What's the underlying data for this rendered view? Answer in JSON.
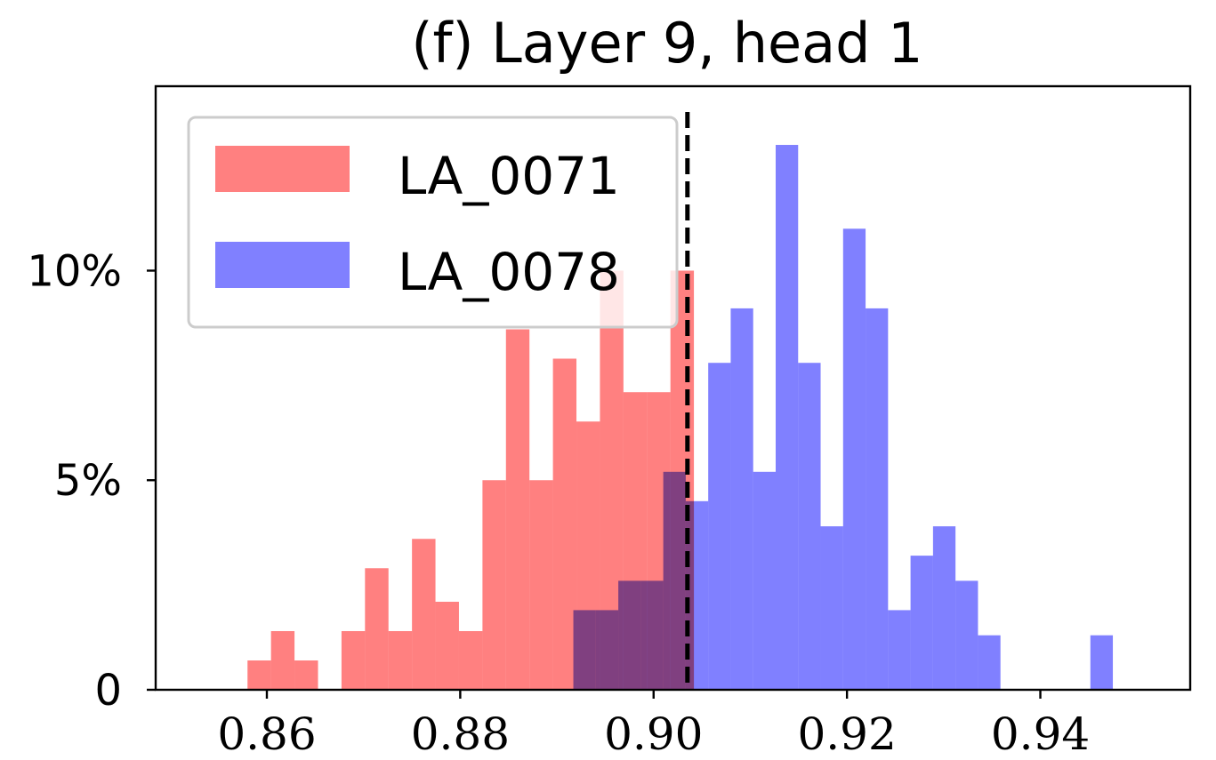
{
  "chart_data": {
    "type": "bar",
    "title": "(f) Layer 9, head 1",
    "xlabel": "",
    "ylabel": "",
    "xlim": [
      0.8485,
      0.9555
    ],
    "ylim": [
      0,
      14.4
    ],
    "xticks": [
      {
        "value": 0.86,
        "label": "0.86"
      },
      {
        "value": 0.88,
        "label": "0.88"
      },
      {
        "value": 0.9,
        "label": "0.90"
      },
      {
        "value": 0.92,
        "label": "0.92"
      },
      {
        "value": 0.94,
        "label": "0.94"
      }
    ],
    "yticks": [
      {
        "value": 0,
        "label": "0"
      },
      {
        "value": 5,
        "label": "5%"
      },
      {
        "value": 10,
        "label": "10%"
      }
    ],
    "threshold_line": {
      "x": 0.9035,
      "style": "dashed",
      "color": "#000000"
    },
    "legend": {
      "placement": "top-left"
    },
    "series": [
      {
        "name": "LA_0071",
        "color": "#ff8080",
        "bin_start": 0.858,
        "bin_width": 0.00243,
        "values": [
          0.7,
          1.4,
          0.7,
          0,
          1.4,
          2.9,
          1.4,
          3.6,
          2.1,
          1.4,
          5.0,
          8.6,
          5.0,
          7.9,
          6.4,
          10.0,
          7.1,
          7.1,
          10.0,
          0,
          0,
          0,
          0,
          0
        ]
      },
      {
        "name": "LA_0078",
        "color": "#8080ff",
        "bin_start": 0.8917,
        "bin_width": 0.002325,
        "values": [
          1.9,
          1.9,
          2.6,
          2.6,
          5.2,
          4.5,
          7.8,
          9.1,
          5.2,
          13.0,
          7.8,
          3.9,
          11.0,
          9.1,
          1.9,
          3.2,
          3.9,
          2.6,
          1.3,
          0,
          0,
          0,
          0,
          1.3
        ]
      }
    ]
  }
}
